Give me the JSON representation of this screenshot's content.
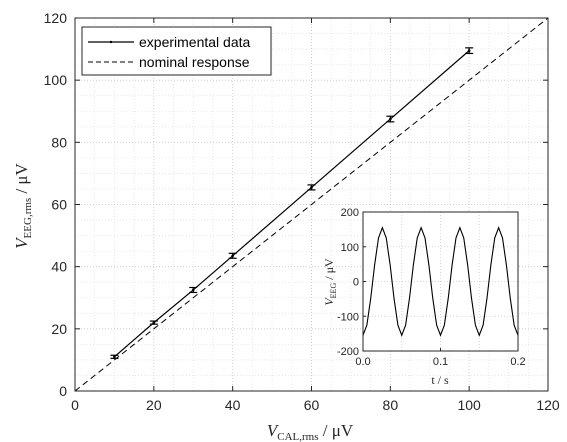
{
  "chart_data": [
    {
      "type": "line",
      "xlabel_main": "V",
      "xlabel_sub": "CAL,rms",
      "xlabel_unit": " / μV",
      "ylabel_main": "V",
      "ylabel_sub": "EEG,rms",
      "ylabel_unit": " / μV",
      "xlim": [
        0,
        120
      ],
      "ylim": [
        0,
        120
      ],
      "xticks": [
        0,
        20,
        40,
        60,
        80,
        100,
        120
      ],
      "yticks": [
        0,
        20,
        40,
        60,
        80,
        100,
        120
      ],
      "grid": "dotted-major-and-minor",
      "legend": "top-left",
      "series": [
        {
          "name": "experimental data",
          "style": "solid",
          "color": "#000000",
          "x": [
            10,
            20,
            30,
            40,
            60,
            80,
            100
          ],
          "y": [
            11,
            22,
            32.5,
            43.5,
            65.5,
            87.5,
            109.5
          ],
          "error": [
            0.5,
            0.5,
            0.8,
            0.8,
            0.8,
            0.9,
            0.9
          ]
        },
        {
          "name": "nominal response",
          "style": "dashed",
          "color": "#000000",
          "x": [
            0,
            120
          ],
          "y": [
            0,
            120
          ]
        }
      ]
    },
    {
      "type": "line",
      "inset": true,
      "xlabel": "t / s",
      "ylabel_main": "V",
      "ylabel_sub": "EEG",
      "ylabel_unit": " / μV",
      "xlim": [
        0,
        0.2
      ],
      "ylim": [
        -200,
        200
      ],
      "xticks": [
        0,
        0.1,
        0.2
      ],
      "xtick_labels": [
        "0.0",
        "0.1",
        "0.2"
      ],
      "yticks": [
        -200,
        -100,
        0,
        100,
        200
      ],
      "yticks_labels": [
        "-200",
        "-100",
        "0",
        "100",
        "200"
      ],
      "grid": "dotted-major",
      "signal": {
        "amplitude": 155,
        "frequency_hz": 20,
        "phase_offset_s": 0.0125,
        "x_start": 0,
        "x_end": 0.2
      }
    }
  ]
}
